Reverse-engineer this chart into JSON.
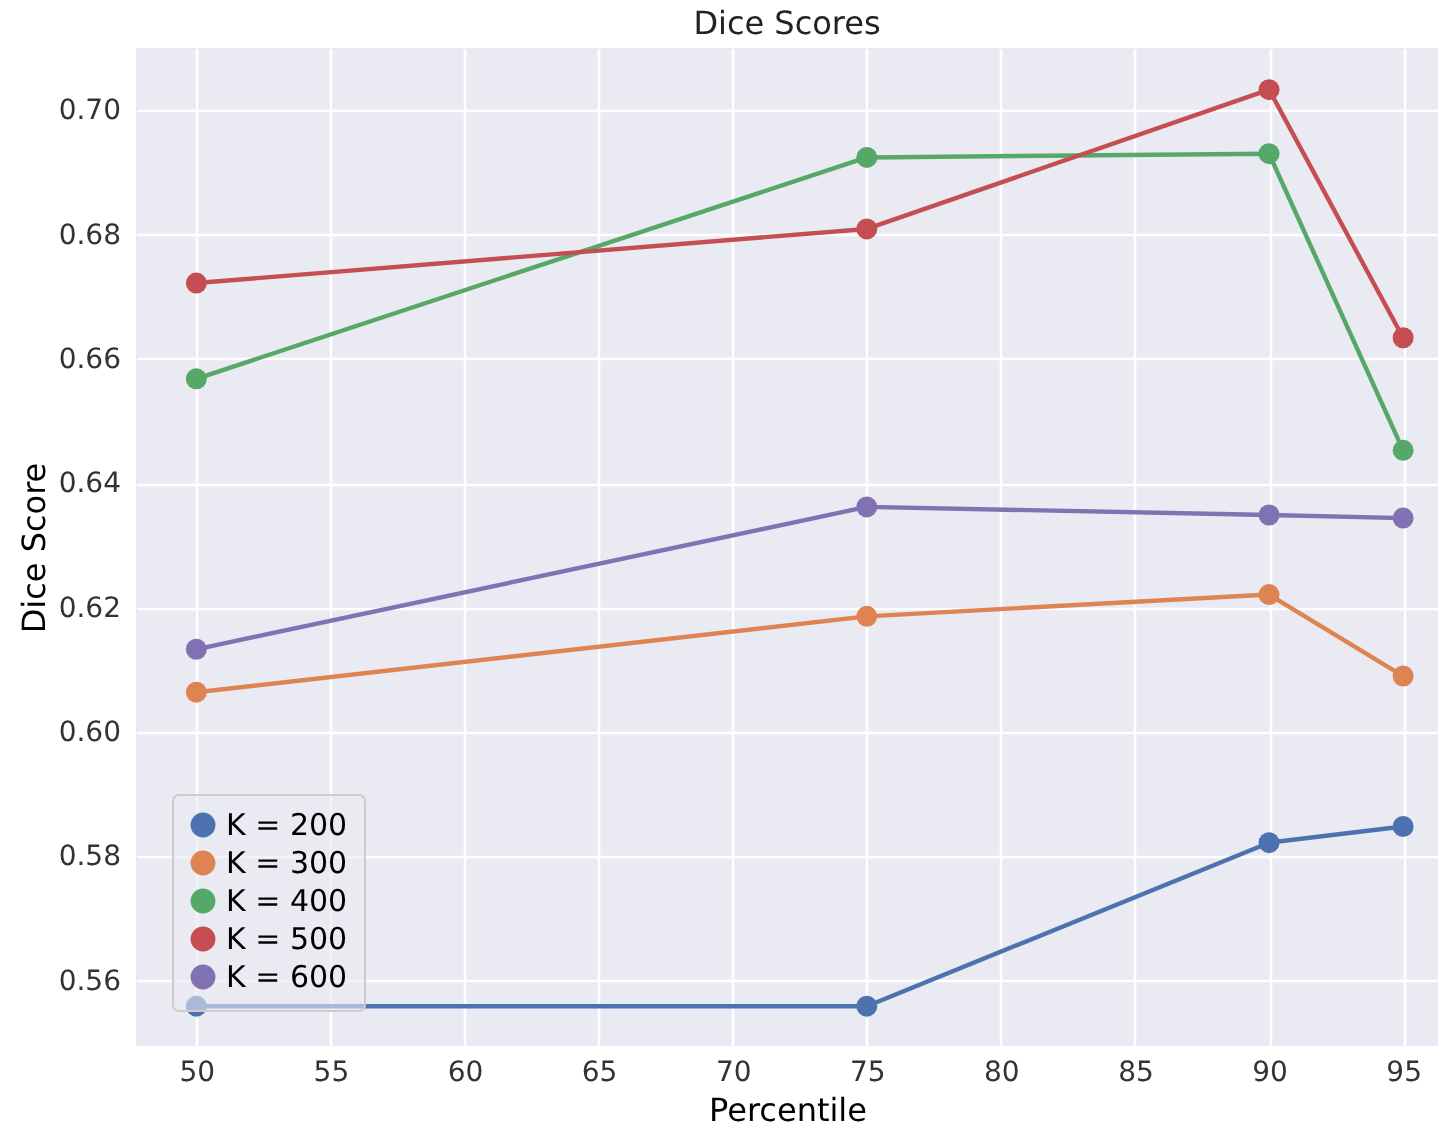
{
  "chart_data": {
    "type": "line",
    "title": "Dice Scores",
    "xlabel": "Percentile",
    "ylabel": "Dice Score",
    "x": [
      50,
      75,
      90,
      95
    ],
    "series": [
      {
        "name": "K = 200",
        "color": "#4c72b0",
        "values": [
          0.5559,
          0.5559,
          0.5822,
          0.5848
        ]
      },
      {
        "name": "K = 300",
        "color": "#dd8452",
        "values": [
          0.6064,
          0.6186,
          0.6221,
          0.609
        ]
      },
      {
        "name": "K = 400",
        "color": "#55a868",
        "values": [
          0.6568,
          0.6924,
          0.693,
          0.6453
        ]
      },
      {
        "name": "K = 500",
        "color": "#c44e52",
        "values": [
          0.6722,
          0.6809,
          0.7033,
          0.6634
        ]
      },
      {
        "name": "K = 600",
        "color": "#8172b3",
        "values": [
          0.6133,
          0.6362,
          0.6349,
          0.6344
        ]
      }
    ],
    "xlim": [
      47.75,
      96.3
    ],
    "ylim": [
      0.5495,
      0.71
    ],
    "xticks": [
      50,
      55,
      60,
      65,
      70,
      75,
      80,
      85,
      90,
      95
    ],
    "yticks": [
      {
        "value": 0.56,
        "label": "0.56"
      },
      {
        "value": 0.58,
        "label": "0.58"
      },
      {
        "value": 0.6,
        "label": "0.60"
      },
      {
        "value": 0.62,
        "label": "0.62"
      },
      {
        "value": 0.64,
        "label": "0.64"
      },
      {
        "value": 0.66,
        "label": "0.66"
      },
      {
        "value": 0.68,
        "label": "0.68"
      },
      {
        "value": 0.7,
        "label": "0.70"
      }
    ],
    "grid": true,
    "legend": "bottom left",
    "marker": "circle",
    "line_style": "solid"
  }
}
